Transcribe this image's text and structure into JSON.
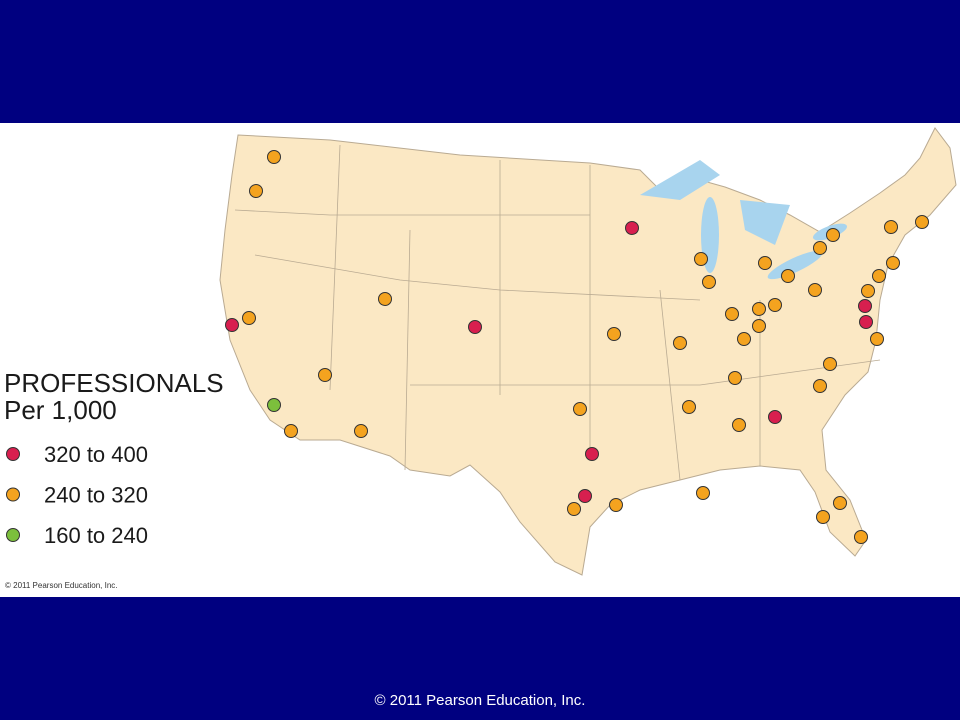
{
  "legend": {
    "title": "PROFESSIONALS",
    "subtitle": "Per 1,000",
    "items": [
      {
        "label": "320 to 400",
        "color": "#d81f4f"
      },
      {
        "label": "240 to 320",
        "color": "#f4a31f"
      },
      {
        "label": "160 to 240",
        "color": "#7cbf3c"
      }
    ]
  },
  "map_credit": "© 2011 Pearson Education, Inc.",
  "footer": "© 2011 Pearson Education, Inc."
}
